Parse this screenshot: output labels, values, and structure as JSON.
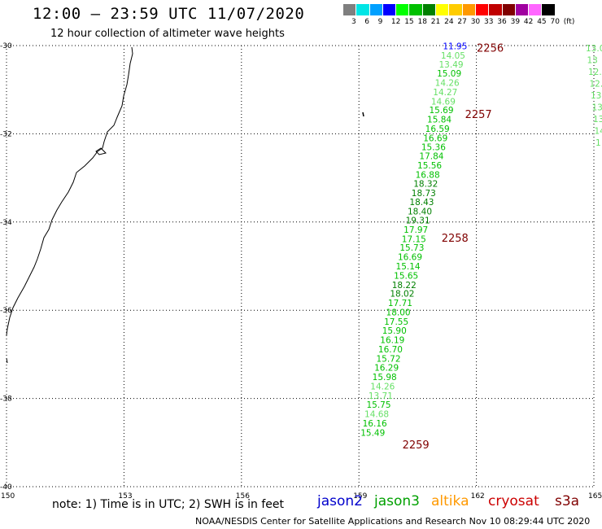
{
  "header": {
    "title": "12:00 – 23:59 UTC 11/07/2020",
    "subtitle": "12 hour collection of altimeter wave heights"
  },
  "color_scale": {
    "labels": [
      "3",
      "6",
      "9",
      "12",
      "15",
      "18",
      "21",
      "24",
      "27",
      "30",
      "33",
      "36",
      "39",
      "42",
      "45",
      "70",
      "(ft)"
    ],
    "colors": [
      "#7f7f7f",
      "#00e5e5",
      "#00a0ff",
      "#0000ff",
      "#00ff00",
      "#00c000",
      "#008000",
      "#ffff00",
      "#ffcc00",
      "#ff9900",
      "#ff0000",
      "#c00000",
      "#800000",
      "#a000a0",
      "#ff66ff",
      "#000000"
    ]
  },
  "map": {
    "lon_labels": [
      "150",
      "153",
      "156",
      "159",
      "162",
      "165"
    ],
    "lat_labels": [
      "-30",
      "-32",
      "-34",
      "-36",
      "-38",
      "-40"
    ],
    "lon_range": [
      150,
      165
    ],
    "lat_range": [
      -30,
      -40
    ],
    "coastline_color": "#000000",
    "grid_color": "#000000"
  },
  "chart_data": {
    "type": "scatter",
    "description_units": "significant wave height in feet along altimeter ground tracks",
    "tracks": [
      {
        "pass_label": "2256",
        "points": [
          {
            "lon": 161.35,
            "lat": -30.01,
            "swh": 11.95,
            "color": "#0000ff"
          },
          {
            "lon": 161.3,
            "lat": -30.22,
            "swh": 14.05,
            "color": "#66e066"
          },
          {
            "lon": 161.25,
            "lat": -30.42,
            "swh": 13.49,
            "color": "#66e066"
          },
          {
            "lon": 161.2,
            "lat": -30.63,
            "swh": 15.09,
            "color": "#00c000"
          },
          {
            "lon": 161.15,
            "lat": -30.84,
            "swh": 14.26,
            "color": "#66e066"
          },
          {
            "lon": 161.1,
            "lat": -31.05,
            "swh": 14.27,
            "color": "#66e066"
          },
          {
            "lon": 161.05,
            "lat": -31.26,
            "swh": 14.69,
            "color": "#66e066"
          },
          {
            "lon": 161.0,
            "lat": -31.46,
            "swh": 15.69,
            "color": "#00c000"
          },
          {
            "lon": 160.95,
            "lat": -31.67,
            "swh": 15.84,
            "color": "#00c000"
          },
          {
            "lon": 160.9,
            "lat": -31.88,
            "swh": 16.59,
            "color": "#00c000"
          },
          {
            "lon": 160.85,
            "lat": -32.09,
            "swh": 16.69,
            "color": "#00c000"
          },
          {
            "lon": 160.8,
            "lat": -32.3,
            "swh": 15.36,
            "color": "#00c000"
          },
          {
            "lon": 160.75,
            "lat": -32.5,
            "swh": 17.84,
            "color": "#00c000"
          },
          {
            "lon": 160.7,
            "lat": -32.71,
            "swh": 15.56,
            "color": "#00c000"
          },
          {
            "lon": 160.65,
            "lat": -32.92,
            "swh": 16.88,
            "color": "#00c000"
          },
          {
            "lon": 160.6,
            "lat": -33.13,
            "swh": 18.32,
            "color": "#008000"
          },
          {
            "lon": 160.55,
            "lat": -33.34,
            "swh": 18.73,
            "color": "#008000"
          },
          {
            "lon": 160.5,
            "lat": -33.54,
            "swh": 18.43,
            "color": "#008000"
          },
          {
            "lon": 160.45,
            "lat": -33.75,
            "swh": 18.4,
            "color": "#008000"
          },
          {
            "lon": 160.4,
            "lat": -33.96,
            "swh": 19.31,
            "color": "#008000"
          },
          {
            "lon": 160.35,
            "lat": -34.17,
            "swh": 17.97,
            "color": "#00c000"
          },
          {
            "lon": 160.3,
            "lat": -34.38,
            "swh": 17.15,
            "color": "#00c000"
          },
          {
            "lon": 160.25,
            "lat": -34.58,
            "swh": 15.73,
            "color": "#00c000"
          },
          {
            "lon": 160.2,
            "lat": -34.79,
            "swh": 16.69,
            "color": "#00c000"
          },
          {
            "lon": 160.15,
            "lat": -35.0,
            "swh": 15.14,
            "color": "#00c000"
          },
          {
            "lon": 160.1,
            "lat": -35.21,
            "swh": 15.65,
            "color": "#00c000"
          },
          {
            "lon": 160.05,
            "lat": -35.42,
            "swh": 18.22,
            "color": "#008000"
          },
          {
            "lon": 160.0,
            "lat": -35.62,
            "swh": 18.02,
            "color": "#008000"
          },
          {
            "lon": 159.95,
            "lat": -35.83,
            "swh": 17.71,
            "color": "#00c000"
          },
          {
            "lon": 159.9,
            "lat": -36.04,
            "swh": 18.0,
            "color": "#00c000"
          },
          {
            "lon": 159.85,
            "lat": -36.25,
            "swh": 17.55,
            "color": "#00c000"
          },
          {
            "lon": 159.8,
            "lat": -36.46,
            "swh": 15.9,
            "color": "#00c000"
          },
          {
            "lon": 159.75,
            "lat": -36.67,
            "swh": 16.19,
            "color": "#00c000"
          },
          {
            "lon": 159.7,
            "lat": -36.88,
            "swh": 16.7,
            "color": "#00c000"
          },
          {
            "lon": 159.65,
            "lat": -37.09,
            "swh": 15.72,
            "color": "#00c000"
          },
          {
            "lon": 159.6,
            "lat": -37.3,
            "swh": 16.29,
            "color": "#00c000"
          },
          {
            "lon": 159.55,
            "lat": -37.51,
            "swh": 15.98,
            "color": "#00c000"
          },
          {
            "lon": 159.5,
            "lat": -37.72,
            "swh": 14.26,
            "color": "#66e066"
          },
          {
            "lon": 159.45,
            "lat": -37.93,
            "swh": 13.71,
            "color": "#66e066"
          },
          {
            "lon": 159.4,
            "lat": -38.14,
            "swh": 15.75,
            "color": "#00c000"
          },
          {
            "lon": 159.35,
            "lat": -38.35,
            "swh": 14.68,
            "color": "#66e066"
          },
          {
            "lon": 159.3,
            "lat": -38.56,
            "swh": 16.16,
            "color": "#00c000"
          },
          {
            "lon": 159.25,
            "lat": -38.77,
            "swh": 15.49,
            "color": "#00c000"
          }
        ]
      }
    ],
    "pass_labels": [
      {
        "text": "2256",
        "lon": 162.3,
        "lat": -30.05
      },
      {
        "text": "2257",
        "lon": 162.0,
        "lat": -31.55
      },
      {
        "text": "2258",
        "lon": 161.4,
        "lat": -34.35
      },
      {
        "text": "2259",
        "lon": 160.4,
        "lat": -39.04
      }
    ],
    "partial_right_track": [
      "13.0",
      "13",
      "12.",
      "12.",
      "13",
      "13",
      "13",
      "14",
      "1"
    ]
  },
  "footer": {
    "note": "note:  1) Time is in UTC;  2) SWH is in feet",
    "satellites": [
      {
        "name": "jason2",
        "color": "#0000cc"
      },
      {
        "name": "jason3",
        "color": "#00a000"
      },
      {
        "name": "altika",
        "color": "#ff9900"
      },
      {
        "name": "cryosat",
        "color": "#cc0000"
      },
      {
        "name": "s3a",
        "color": "#800000"
      }
    ],
    "credit": "NOAA/NESDIS Center for Satellite Applications and Research     Nov 10 08:29:44 UTC 2020"
  }
}
